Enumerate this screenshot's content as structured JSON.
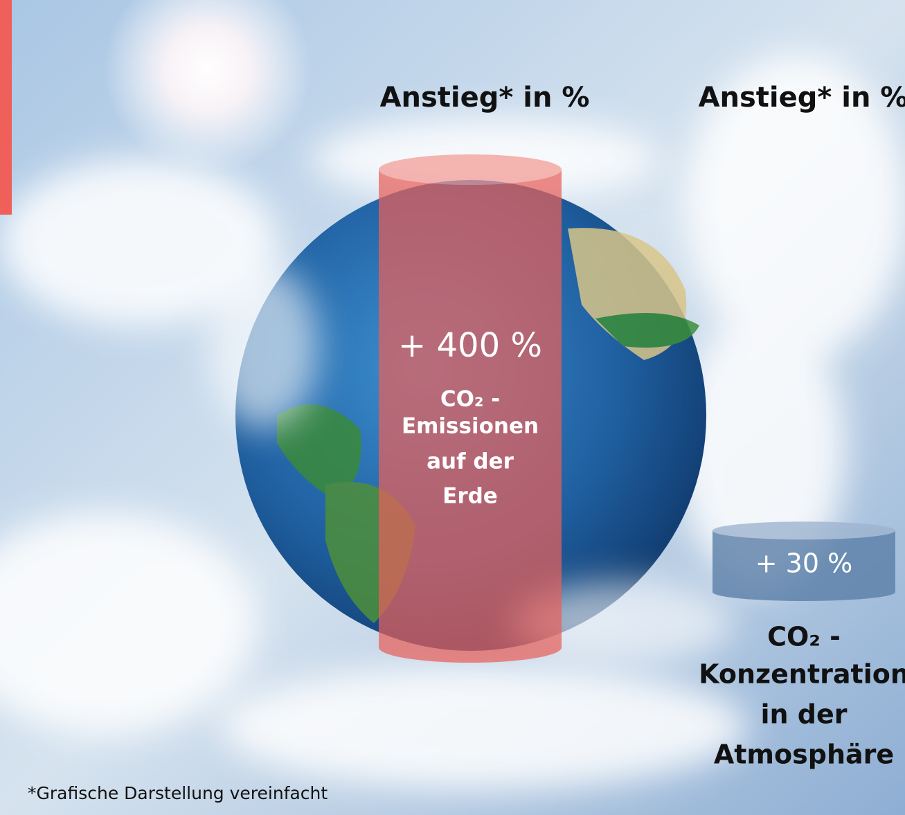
{
  "columns": [
    {
      "heading": "Anstieg* in %",
      "value": 400,
      "value_label": "+ 400 %",
      "caption": [
        "CO₂ -",
        "Emissionen",
        "auf der",
        "Erde"
      ]
    },
    {
      "heading": "Anstieg* in %",
      "value": 30,
      "value_label": "+ 30 %",
      "caption": [
        "CO₂ -",
        "Konzentration",
        "in der",
        "Atmosphäre"
      ]
    }
  ],
  "footnote": "*Grafische Darstellung vereinfacht"
}
